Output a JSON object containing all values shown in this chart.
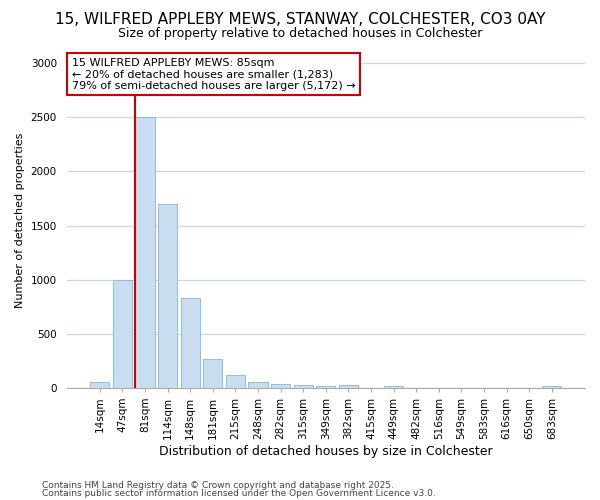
{
  "title1": "15, WILFRED APPLEBY MEWS, STANWAY, COLCHESTER, CO3 0AY",
  "title2": "Size of property relative to detached houses in Colchester",
  "xlabel": "Distribution of detached houses by size in Colchester",
  "ylabel": "Number of detached properties",
  "categories": [
    "14sqm",
    "47sqm",
    "81sqm",
    "114sqm",
    "148sqm",
    "181sqm",
    "215sqm",
    "248sqm",
    "282sqm",
    "315sqm",
    "349sqm",
    "382sqm",
    "415sqm",
    "449sqm",
    "482sqm",
    "516sqm",
    "549sqm",
    "583sqm",
    "616sqm",
    "650sqm",
    "683sqm"
  ],
  "values": [
    55,
    1000,
    2500,
    1700,
    830,
    270,
    120,
    55,
    35,
    25,
    15,
    30,
    0,
    20,
    0,
    0,
    0,
    0,
    0,
    0,
    15
  ],
  "bar_color": "#c8ddf0",
  "bar_edge_color": "#8ab4d8",
  "red_line_index": 2,
  "red_line_color": "#cc0000",
  "annotation_text": "15 WILFRED APPLEBY MEWS: 85sqm\n← 20% of detached houses are smaller (1,283)\n79% of semi-detached houses are larger (5,172) →",
  "annotation_box_facecolor": "#ffffff",
  "annotation_box_edgecolor": "#cc0000",
  "ylim": [
    0,
    3100
  ],
  "footnote1": "Contains HM Land Registry data © Crown copyright and database right 2025.",
  "footnote2": "Contains public sector information licensed under the Open Government Licence v3.0.",
  "bg_color": "#ffffff",
  "grid_color": "#c8d8ee",
  "title1_fontsize": 11,
  "title2_fontsize": 9,
  "xlabel_fontsize": 9,
  "ylabel_fontsize": 8,
  "tick_fontsize": 7.5,
  "footnote_fontsize": 6.5,
  "annotation_fontsize": 8
}
